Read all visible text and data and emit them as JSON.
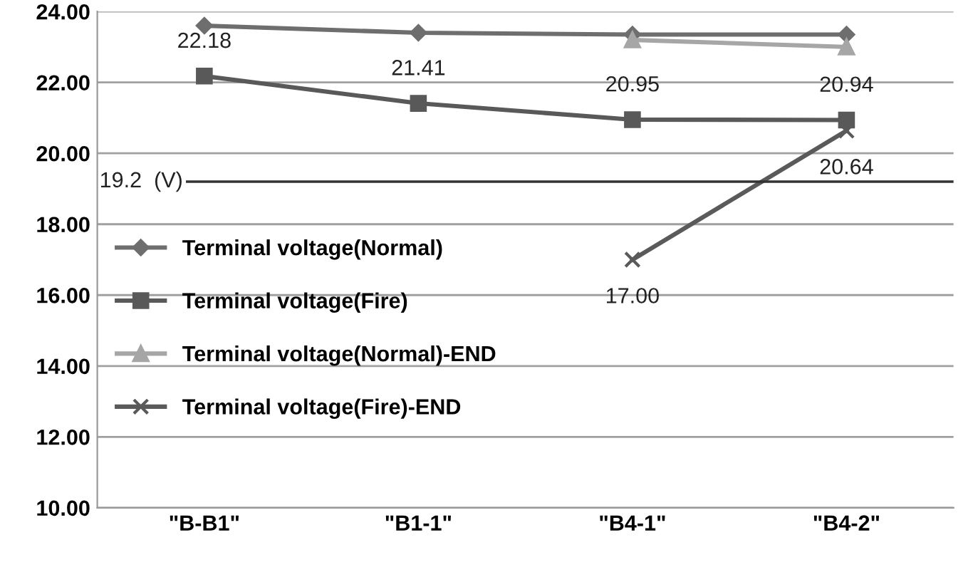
{
  "chart_data": {
    "type": "line",
    "categories": [
      "\"B-B1\"",
      "\"B1-1\"",
      "\"B4-1\"",
      "\"B4-2\""
    ],
    "series": [
      {
        "name": "Terminal voltage(Normal)",
        "color": "#6e6e6e",
        "marker": "diamond",
        "values": [
          23.6,
          23.4,
          23.35,
          23.35
        ]
      },
      {
        "name": "Terminal voltage(Fire)",
        "color": "#595959",
        "marker": "square",
        "values": [
          22.18,
          21.41,
          20.95,
          20.94
        ],
        "value_labels": [
          "22.18",
          "21.41",
          "20.95",
          "20.94"
        ]
      },
      {
        "name": "Terminal voltage(Normal)-END",
        "color": "#a6a6a6",
        "marker": "triangle",
        "values": [
          null,
          null,
          23.2,
          23.0
        ]
      },
      {
        "name": "Terminal voltage(Fire)-END",
        "color": "#5a5a5a",
        "marker": "cross",
        "values": [
          null,
          null,
          17.0,
          20.64
        ],
        "value_labels": [
          null,
          null,
          "17.00",
          "20.64"
        ]
      }
    ],
    "ylim": [
      10,
      24
    ],
    "yticks": [
      {
        "value": 10,
        "label": "10.00"
      },
      {
        "value": 12,
        "label": "12.00"
      },
      {
        "value": 14,
        "label": "14.00"
      },
      {
        "value": 16,
        "label": "16.00"
      },
      {
        "value": 18,
        "label": "18.00"
      },
      {
        "value": 20,
        "label": "20.00"
      },
      {
        "value": 22,
        "label": "22.00"
      },
      {
        "value": 24,
        "label": "24.00"
      }
    ],
    "ref_lines": [
      {
        "axis": "y",
        "value": 19.2,
        "label": "19.2  (V)",
        "color": "#333333"
      }
    ],
    "grid": "y",
    "legend": "left"
  }
}
